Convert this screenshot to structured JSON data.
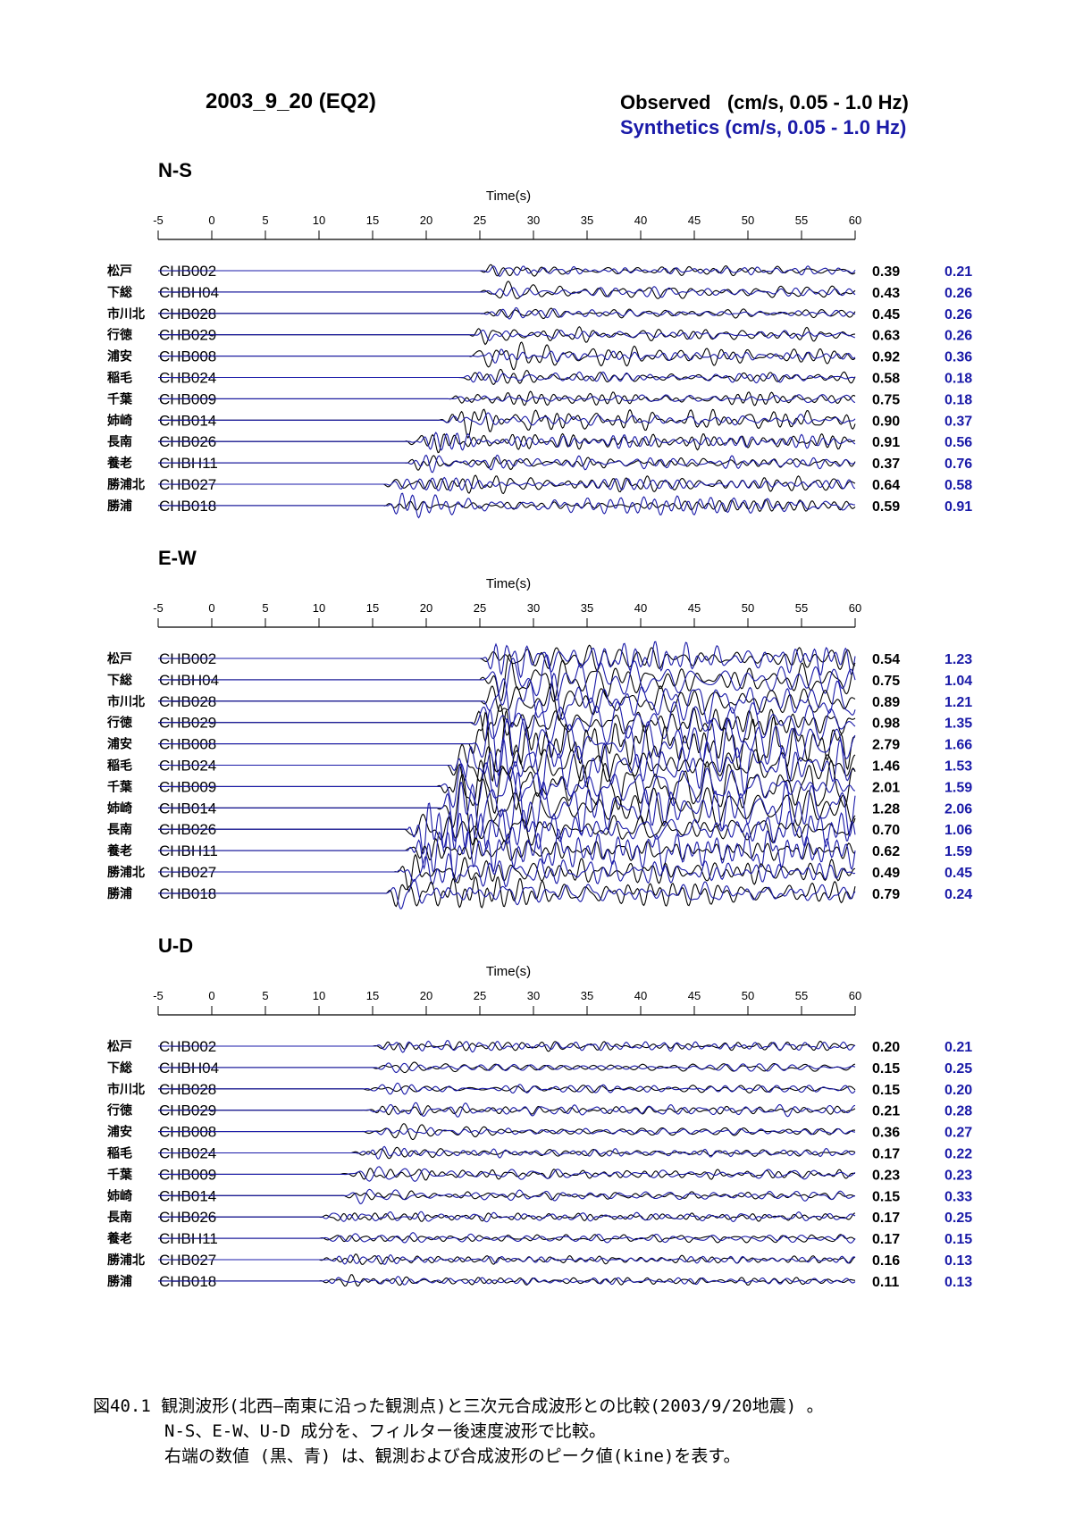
{
  "header": {
    "title": "2003_9_20 (EQ2)",
    "observed_legend": "Observed   (cm/s, 0.05 - 1.0 Hz)",
    "synthetic_legend": "Synthetics (cm/s, 0.05 - 1.0 Hz)"
  },
  "colors": {
    "observed": "#000000",
    "synthetic": "#1a1aa8"
  },
  "chart_data": [
    {
      "type": "line",
      "title": "N-S",
      "xlabel": "Time(s)",
      "xlim": [
        -5,
        60
      ],
      "xticks": [
        -5,
        0,
        5,
        10,
        15,
        20,
        25,
        30,
        35,
        40,
        45,
        50,
        55,
        60
      ],
      "stations": [
        {
          "place": "松戸",
          "code": "CHB002",
          "observed_peak": "0.39",
          "synthetic_peak": "0.21",
          "onset": 25
        },
        {
          "place": "下総",
          "code": "CHBH04",
          "observed_peak": "0.43",
          "synthetic_peak": "0.26",
          "onset": 25
        },
        {
          "place": "市川北",
          "code": "CHB028",
          "observed_peak": "0.45",
          "synthetic_peak": "0.26",
          "onset": 25
        },
        {
          "place": "行徳",
          "code": "CHB029",
          "observed_peak": "0.63",
          "synthetic_peak": "0.26",
          "onset": 24
        },
        {
          "place": "浦安",
          "code": "CHB008",
          "observed_peak": "0.92",
          "synthetic_peak": "0.36",
          "onset": 24
        },
        {
          "place": "稲毛",
          "code": "CHB024",
          "observed_peak": "0.58",
          "synthetic_peak": "0.18",
          "onset": 23
        },
        {
          "place": "千葉",
          "code": "CHB009",
          "observed_peak": "0.75",
          "synthetic_peak": "0.18",
          "onset": 22
        },
        {
          "place": "姉崎",
          "code": "CHB014",
          "observed_peak": "0.90",
          "synthetic_peak": "0.37",
          "onset": 21
        },
        {
          "place": "長南",
          "code": "CHB026",
          "observed_peak": "0.91",
          "synthetic_peak": "0.56",
          "onset": 18
        },
        {
          "place": "養老",
          "code": "CHBH11",
          "observed_peak": "0.37",
          "synthetic_peak": "0.76",
          "onset": 18
        },
        {
          "place": "勝浦北",
          "code": "CHB027",
          "observed_peak": "0.64",
          "synthetic_peak": "0.58",
          "onset": 16
        },
        {
          "place": "勝浦",
          "code": "CHB018",
          "observed_peak": "0.59",
          "synthetic_peak": "0.91",
          "onset": 16
        }
      ]
    },
    {
      "type": "line",
      "title": "E-W",
      "xlabel": "Time(s)",
      "xlim": [
        -5,
        60
      ],
      "xticks": [
        -5,
        0,
        5,
        10,
        15,
        20,
        25,
        30,
        35,
        40,
        45,
        50,
        55,
        60
      ],
      "stations": [
        {
          "place": "松戸",
          "code": "CHB002",
          "observed_peak": "0.54",
          "synthetic_peak": "1.23",
          "onset": 25
        },
        {
          "place": "下総",
          "code": "CHBH04",
          "observed_peak": "0.75",
          "synthetic_peak": "1.04",
          "onset": 25
        },
        {
          "place": "市川北",
          "code": "CHB028",
          "observed_peak": "0.89",
          "synthetic_peak": "1.21",
          "onset": 25
        },
        {
          "place": "行徳",
          "code": "CHB029",
          "observed_peak": "0.98",
          "synthetic_peak": "1.35",
          "onset": 24
        },
        {
          "place": "浦安",
          "code": "CHB008",
          "observed_peak": "2.79",
          "synthetic_peak": "1.66",
          "onset": 24
        },
        {
          "place": "稲毛",
          "code": "CHB024",
          "observed_peak": "1.46",
          "synthetic_peak": "1.53",
          "onset": 22
        },
        {
          "place": "千葉",
          "code": "CHB009",
          "observed_peak": "2.01",
          "synthetic_peak": "1.59",
          "onset": 21
        },
        {
          "place": "姉崎",
          "code": "CHB014",
          "observed_peak": "1.28",
          "synthetic_peak": "2.06",
          "onset": 21
        },
        {
          "place": "長南",
          "code": "CHB026",
          "observed_peak": "0.70",
          "synthetic_peak": "1.06",
          "onset": 18
        },
        {
          "place": "養老",
          "code": "CHBH11",
          "observed_peak": "0.62",
          "synthetic_peak": "1.59",
          "onset": 18
        },
        {
          "place": "勝浦北",
          "code": "CHB027",
          "observed_peak": "0.49",
          "synthetic_peak": "0.45",
          "onset": 17
        },
        {
          "place": "勝浦",
          "code": "CHB018",
          "observed_peak": "0.79",
          "synthetic_peak": "0.24",
          "onset": 16
        }
      ]
    },
    {
      "type": "line",
      "title": "U-D",
      "xlabel": "Time(s)",
      "xlim": [
        -5,
        60
      ],
      "xticks": [
        -5,
        0,
        5,
        10,
        15,
        20,
        25,
        30,
        35,
        40,
        45,
        50,
        55,
        60
      ],
      "stations": [
        {
          "place": "松戸",
          "code": "CHB002",
          "observed_peak": "0.20",
          "synthetic_peak": "0.21",
          "onset": 15
        },
        {
          "place": "下総",
          "code": "CHBH04",
          "observed_peak": "0.15",
          "synthetic_peak": "0.25",
          "onset": 15
        },
        {
          "place": "市川北",
          "code": "CHB028",
          "observed_peak": "0.15",
          "synthetic_peak": "0.20",
          "onset": 14
        },
        {
          "place": "行徳",
          "code": "CHB029",
          "observed_peak": "0.21",
          "synthetic_peak": "0.28",
          "onset": 14
        },
        {
          "place": "浦安",
          "code": "CHB008",
          "observed_peak": "0.36",
          "synthetic_peak": "0.27",
          "onset": 14
        },
        {
          "place": "稲毛",
          "code": "CHB024",
          "observed_peak": "0.17",
          "synthetic_peak": "0.22",
          "onset": 13
        },
        {
          "place": "千葉",
          "code": "CHB009",
          "observed_peak": "0.23",
          "synthetic_peak": "0.23",
          "onset": 12
        },
        {
          "place": "姉崎",
          "code": "CHB014",
          "observed_peak": "0.15",
          "synthetic_peak": "0.33",
          "onset": 12
        },
        {
          "place": "長南",
          "code": "CHB026",
          "observed_peak": "0.17",
          "synthetic_peak": "0.25",
          "onset": 10
        },
        {
          "place": "養老",
          "code": "CHBH11",
          "observed_peak": "0.17",
          "synthetic_peak": "0.15",
          "onset": 10
        },
        {
          "place": "勝浦北",
          "code": "CHB027",
          "observed_peak": "0.16",
          "synthetic_peak": "0.13",
          "onset": 10
        },
        {
          "place": "勝浦",
          "code": "CHB018",
          "observed_peak": "0.11",
          "synthetic_peak": "0.13",
          "onset": 10
        }
      ]
    }
  ],
  "caption": {
    "line1": "図40.1 観測波形(北西—南東に沿った観測点)と三次元合成波形との比較(2003/9/20地震) 。",
    "line2": "N-S、E-W、U-D 成分を、フィルター後速度波形で比較。",
    "line3": "右端の数値 (黒、青) は、観測および合成波形のピーク値(kine)を表す。"
  }
}
